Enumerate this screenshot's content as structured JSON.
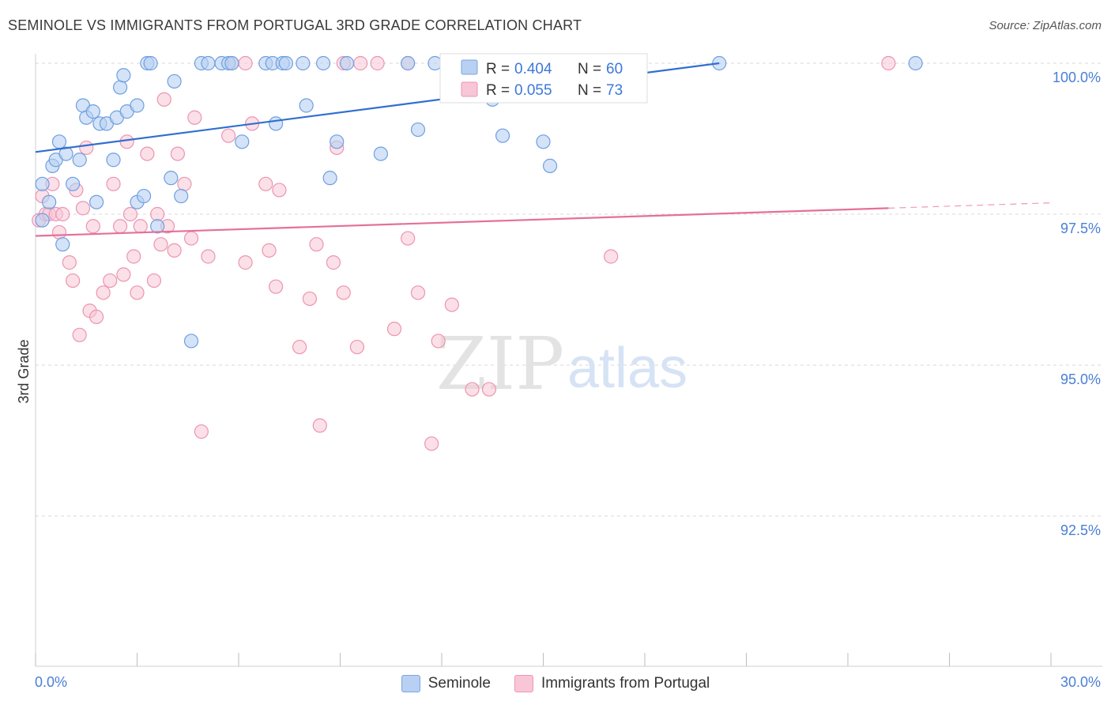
{
  "title": "SEMINOLE VS IMMIGRANTS FROM PORTUGAL 3RD GRADE CORRELATION CHART",
  "source": "Source: ZipAtlas.com",
  "watermark": {
    "zip": "ZIP",
    "atlas": "atlas"
  },
  "legend_box": {
    "row1": {
      "r_label": "R =",
      "r_value": "0.404",
      "n_label": "N =",
      "n_value": "60"
    },
    "row2": {
      "r_label": "R =",
      "r_value": "0.055",
      "n_label": "N =",
      "n_value": "73"
    }
  },
  "bottom_legend": {
    "series1": "Seminole",
    "series2": "Immigrants from Portugal"
  },
  "colors": {
    "blue_fill": "#b8d0f2",
    "blue_stroke": "#6f9fe0",
    "blue_line": "#2f6fcf",
    "pink_fill": "#f8c6d6",
    "pink_stroke": "#ec94b2",
    "pink_line": "#e4709a",
    "tick_label": "#4a7fd6",
    "grid": "#d8d8d8"
  },
  "chart_data": {
    "type": "scatter",
    "title": "SEMINOLE VS IMMIGRANTS FROM PORTUGAL 3RD GRADE CORRELATION CHART",
    "xlabel": "",
    "ylabel": "3rd Grade",
    "xlim": [
      0,
      30
    ],
    "ylim": [
      90.0,
      100.2
    ],
    "x_tick_labels": [
      "0.0%",
      "30.0%"
    ],
    "y_ticks": [
      92.5,
      95.0,
      97.5,
      100.0
    ],
    "y_tick_labels": [
      "92.5%",
      "95.0%",
      "97.5%",
      "100.0%"
    ],
    "grid": "horizontal dashed",
    "legend_placement": "top-center",
    "series": [
      {
        "name": "Seminole",
        "R": 0.404,
        "N": 60,
        "trend": {
          "x": [
            0,
            20.2
          ],
          "y": [
            98.53,
            100.0
          ]
        },
        "points": [
          [
            0.2,
            97.4
          ],
          [
            0.2,
            98.0
          ],
          [
            0.4,
            97.7
          ],
          [
            0.5,
            98.3
          ],
          [
            0.6,
            98.4
          ],
          [
            0.7,
            98.7
          ],
          [
            0.9,
            98.5
          ],
          [
            0.8,
            97.0
          ],
          [
            1.1,
            98.0
          ],
          [
            1.3,
            98.4
          ],
          [
            1.8,
            97.7
          ],
          [
            1.4,
            99.3
          ],
          [
            1.5,
            99.1
          ],
          [
            1.7,
            99.2
          ],
          [
            1.9,
            99.0
          ],
          [
            2.1,
            99.0
          ],
          [
            2.3,
            98.4
          ],
          [
            2.4,
            99.1
          ],
          [
            2.5,
            99.6
          ],
          [
            2.6,
            99.8
          ],
          [
            2.7,
            99.2
          ],
          [
            3.0,
            99.3
          ],
          [
            3.0,
            97.7
          ],
          [
            3.2,
            97.8
          ],
          [
            3.6,
            97.3
          ],
          [
            3.3,
            100.0
          ],
          [
            3.4,
            100.0
          ],
          [
            4.0,
            98.1
          ],
          [
            4.1,
            99.7
          ],
          [
            4.3,
            97.8
          ],
          [
            4.6,
            95.4
          ],
          [
            4.9,
            100.0
          ],
          [
            5.1,
            100.0
          ],
          [
            5.5,
            100.0
          ],
          [
            5.7,
            100.0
          ],
          [
            5.8,
            100.0
          ],
          [
            6.1,
            98.7
          ],
          [
            6.8,
            100.0
          ],
          [
            7.0,
            100.0
          ],
          [
            7.1,
            99.0
          ],
          [
            7.3,
            100.0
          ],
          [
            7.4,
            100.0
          ],
          [
            7.9,
            100.0
          ],
          [
            8.0,
            99.3
          ],
          [
            8.5,
            100.0
          ],
          [
            8.7,
            98.1
          ],
          [
            8.9,
            98.7
          ],
          [
            9.2,
            100.0
          ],
          [
            10.2,
            98.5
          ],
          [
            11.0,
            100.0
          ],
          [
            11.3,
            98.9
          ],
          [
            11.8,
            100.0
          ],
          [
            13.5,
            99.4
          ],
          [
            13.6,
            100.0
          ],
          [
            13.8,
            98.8
          ],
          [
            15.0,
            98.7
          ],
          [
            15.2,
            98.3
          ],
          [
            16.0,
            100.0
          ],
          [
            20.2,
            100.0
          ],
          [
            26.0,
            100.0
          ]
        ]
      },
      {
        "name": "Immigrants from Portugal",
        "R": 0.055,
        "N": 73,
        "trend": {
          "x": [
            0,
            25.2
          ],
          "y": [
            97.14,
            97.6
          ],
          "dashed_to_x": 30
        },
        "points": [
          [
            0.1,
            97.4
          ],
          [
            0.2,
            97.8
          ],
          [
            0.3,
            97.5
          ],
          [
            0.4,
            97.5
          ],
          [
            0.5,
            98.0
          ],
          [
            0.6,
            97.5
          ],
          [
            0.7,
            97.2
          ],
          [
            0.8,
            97.5
          ],
          [
            1.0,
            96.7
          ],
          [
            1.1,
            96.4
          ],
          [
            1.2,
            97.9
          ],
          [
            1.3,
            95.5
          ],
          [
            1.4,
            97.6
          ],
          [
            1.5,
            98.6
          ],
          [
            1.6,
            95.9
          ],
          [
            1.7,
            97.3
          ],
          [
            1.8,
            95.8
          ],
          [
            2.0,
            96.2
          ],
          [
            2.2,
            96.4
          ],
          [
            2.3,
            98.0
          ],
          [
            2.5,
            97.3
          ],
          [
            2.6,
            96.5
          ],
          [
            2.7,
            98.7
          ],
          [
            2.8,
            97.5
          ],
          [
            2.9,
            96.8
          ],
          [
            3.0,
            96.2
          ],
          [
            3.1,
            97.3
          ],
          [
            3.3,
            98.5
          ],
          [
            3.5,
            96.4
          ],
          [
            3.6,
            97.5
          ],
          [
            3.7,
            97.0
          ],
          [
            3.8,
            99.4
          ],
          [
            3.9,
            97.3
          ],
          [
            4.1,
            96.9
          ],
          [
            4.2,
            98.5
          ],
          [
            4.4,
            98.0
          ],
          [
            4.6,
            97.1
          ],
          [
            4.7,
            99.1
          ],
          [
            4.9,
            93.9
          ],
          [
            5.1,
            96.8
          ],
          [
            5.7,
            98.8
          ],
          [
            5.8,
            100.0
          ],
          [
            6.2,
            100.0
          ],
          [
            6.2,
            96.7
          ],
          [
            6.4,
            99.0
          ],
          [
            6.8,
            98.0
          ],
          [
            6.9,
            96.9
          ],
          [
            7.1,
            96.3
          ],
          [
            7.2,
            97.9
          ],
          [
            7.8,
            95.3
          ],
          [
            8.1,
            96.1
          ],
          [
            8.3,
            97.0
          ],
          [
            8.4,
            94.0
          ],
          [
            8.8,
            96.7
          ],
          [
            8.9,
            98.6
          ],
          [
            9.1,
            96.2
          ],
          [
            9.1,
            100.0
          ],
          [
            9.5,
            95.3
          ],
          [
            9.6,
            100.0
          ],
          [
            10.1,
            100.0
          ],
          [
            10.6,
            95.6
          ],
          [
            11.0,
            97.1
          ],
          [
            11.0,
            100.0
          ],
          [
            11.3,
            96.2
          ],
          [
            11.7,
            93.7
          ],
          [
            11.9,
            95.4
          ],
          [
            12.3,
            96.0
          ],
          [
            12.9,
            94.6
          ],
          [
            13.4,
            94.6
          ],
          [
            13.6,
            100.0
          ],
          [
            16.0,
            100.0
          ],
          [
            17.0,
            96.8
          ],
          [
            25.2,
            100.0
          ]
        ]
      }
    ]
  }
}
